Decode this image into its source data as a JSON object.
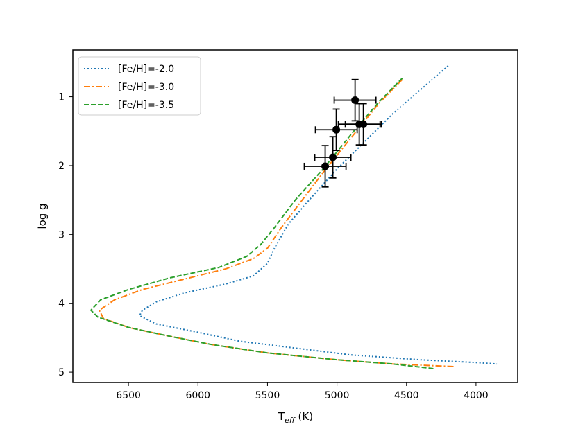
{
  "chart_data": {
    "type": "line",
    "xlabel": {
      "main": "T",
      "sub": "eff",
      "unit": " (K)"
    },
    "ylabel": "log g",
    "xlim": [
      6900,
      3700
    ],
    "ylim": [
      5.15,
      0.32
    ],
    "x_ticks": [
      6500,
      6000,
      5500,
      5000,
      4500,
      4000
    ],
    "y_ticks": [
      1,
      2,
      3,
      4,
      5
    ],
    "grid": false,
    "legend_position": "top-left",
    "series": [
      {
        "name": "[Fe/H]=-2.0",
        "color": "#1f77b4",
        "style": "dotted",
        "points": [
          [
            4200,
            0.55
          ],
          [
            4400,
            0.9
          ],
          [
            4600,
            1.25
          ],
          [
            4800,
            1.65
          ],
          [
            5000,
            2.05
          ],
          [
            5200,
            2.5
          ],
          [
            5350,
            2.85
          ],
          [
            5450,
            3.2
          ],
          [
            5500,
            3.42
          ],
          [
            5600,
            3.6
          ],
          [
            5800,
            3.72
          ],
          [
            6100,
            3.85
          ],
          [
            6300,
            3.98
          ],
          [
            6400,
            4.1
          ],
          [
            6420,
            4.18
          ],
          [
            6300,
            4.3
          ],
          [
            6000,
            4.42
          ],
          [
            5700,
            4.55
          ],
          [
            5300,
            4.65
          ],
          [
            4900,
            4.75
          ],
          [
            4400,
            4.82
          ],
          [
            4000,
            4.86
          ],
          [
            3850,
            4.88
          ]
        ]
      },
      {
        "name": "[Fe/H]=-3.0",
        "color": "#ff7f0e",
        "style": "dashdot",
        "points": [
          [
            4530,
            0.75
          ],
          [
            4700,
            1.1
          ],
          [
            4900,
            1.6
          ],
          [
            5100,
            2.1
          ],
          [
            5250,
            2.5
          ],
          [
            5400,
            2.9
          ],
          [
            5500,
            3.2
          ],
          [
            5600,
            3.35
          ],
          [
            5800,
            3.5
          ],
          [
            6100,
            3.65
          ],
          [
            6400,
            3.8
          ],
          [
            6600,
            3.95
          ],
          [
            6710,
            4.1
          ],
          [
            6680,
            4.22
          ],
          [
            6500,
            4.35
          ],
          [
            6200,
            4.48
          ],
          [
            5900,
            4.6
          ],
          [
            5500,
            4.72
          ],
          [
            5000,
            4.82
          ],
          [
            4600,
            4.88
          ],
          [
            4150,
            4.92
          ]
        ]
      },
      {
        "name": "[Fe/H]=-3.5",
        "color": "#2ca02c",
        "style": "dashed",
        "points": [
          [
            4530,
            0.73
          ],
          [
            4700,
            1.08
          ],
          [
            4900,
            1.55
          ],
          [
            5100,
            2.05
          ],
          [
            5300,
            2.5
          ],
          [
            5450,
            2.9
          ],
          [
            5550,
            3.15
          ],
          [
            5650,
            3.32
          ],
          [
            5850,
            3.48
          ],
          [
            6200,
            3.63
          ],
          [
            6500,
            3.8
          ],
          [
            6700,
            3.95
          ],
          [
            6770,
            4.1
          ],
          [
            6720,
            4.2
          ],
          [
            6500,
            4.35
          ],
          [
            6200,
            4.48
          ],
          [
            5900,
            4.6
          ],
          [
            5500,
            4.72
          ],
          [
            5000,
            4.82
          ],
          [
            4600,
            4.88
          ],
          [
            4300,
            4.95
          ]
        ]
      }
    ],
    "observations": [
      {
        "teff": 4870,
        "logg": 1.05,
        "teff_err": 150,
        "logg_err": 0.3
      },
      {
        "teff": 4840,
        "logg": 1.4,
        "teff_err": 150,
        "logg_err": 0.3
      },
      {
        "teff": 4810,
        "logg": 1.4,
        "teff_err": 130,
        "logg_err": 0.3
      },
      {
        "teff": 5005,
        "logg": 1.48,
        "teff_err": 150,
        "logg_err": 0.3
      },
      {
        "teff": 5030,
        "logg": 1.88,
        "teff_err": 130,
        "logg_err": 0.3
      },
      {
        "teff": 5085,
        "logg": 2.01,
        "teff_err": 150,
        "logg_err": 0.3
      }
    ]
  }
}
